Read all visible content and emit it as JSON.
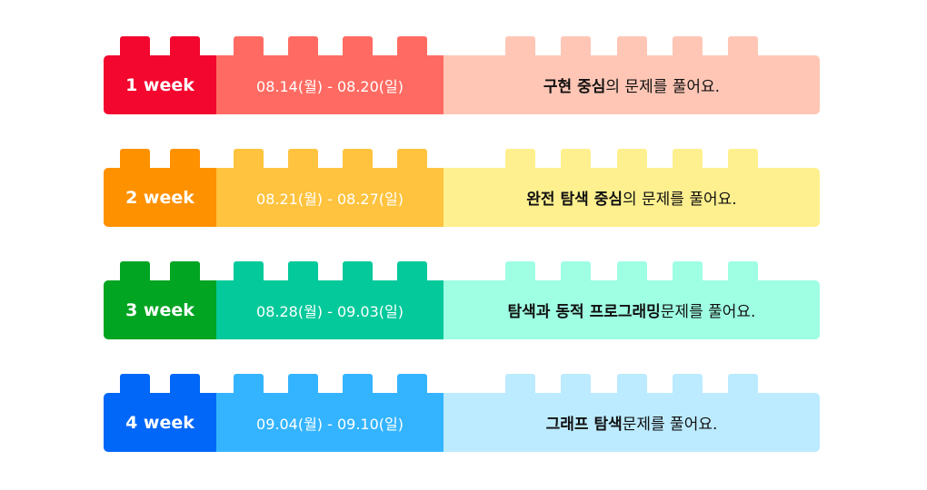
{
  "rows": [
    {
      "week": "1 week",
      "dates": "08.14(월) - 08.20(일)",
      "desc_bold": "구현 중심",
      "desc_rest": "의 문제를 풀어요.",
      "colors": {
        "a": "#F3072F",
        "b": "#FF6B62",
        "c": "#FFC6B5"
      }
    },
    {
      "week": "2 week",
      "dates": "08.21(월) - 08.27(일)",
      "desc_bold": "완전 탐색 중심",
      "desc_rest": "의 문제를 풀어요.",
      "colors": {
        "a": "#FE9100",
        "b": "#FFC33F",
        "c": "#FFF08F"
      }
    },
    {
      "week": "3 week",
      "dates": "08.28(월) - 09.03(일)",
      "desc_bold": "탐색과 동적 프로그래밍",
      "desc_rest": " 문제를 풀어요.",
      "colors": {
        "a": "#02A522",
        "b": "#04C99B",
        "c": "#9FFFE3"
      }
    },
    {
      "week": "4 week",
      "dates": "09.04(월) - 09.10(일)",
      "desc_bold": "그래프 탐색",
      "desc_rest": " 문제를 풀어요.",
      "colors": {
        "a": "#0167F8",
        "b": "#34B4FF",
        "c": "#BCEBFF"
      }
    }
  ]
}
